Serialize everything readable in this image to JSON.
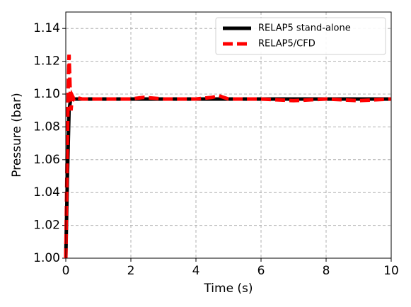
{
  "chart_data": {
    "type": "line",
    "xlabel": "Time (s)",
    "ylabel": "Pressure (bar)",
    "xlim": [
      0,
      10
    ],
    "xticks": [
      0,
      2,
      4,
      6,
      8,
      10
    ],
    "ylim": [
      1.0,
      1.15
    ],
    "yticks": [
      {
        "value": 1.0,
        "label": "1.00"
      },
      1.02,
      1.04,
      1.06,
      1.08,
      {
        "value": 1.1,
        "label": "1.10"
      },
      1.12,
      1.14
    ],
    "grid": true,
    "legend": "upper right",
    "series": [
      {
        "name": "RELAP5 stand-alone",
        "color": "#000000",
        "style": "solid",
        "x": [
          0,
          0.05,
          0.1,
          0.15,
          0.2,
          10
        ],
        "values": [
          1.0,
          1.05,
          1.09,
          1.097,
          1.097,
          1.097
        ]
      },
      {
        "name": "RELAP5/CFD",
        "color": "#ff0000",
        "style": "dashed",
        "x": [
          0,
          0.04,
          0.08,
          0.1,
          0.13,
          0.16,
          0.2,
          0.25,
          0.3,
          0.5,
          1,
          2,
          2.4,
          3,
          4,
          4.5,
          4.7,
          5,
          6,
          7,
          8,
          9,
          10
        ],
        "values": [
          1.0,
          1.06,
          1.11,
          1.124,
          1.105,
          1.09,
          1.099,
          1.097,
          1.098,
          1.097,
          1.097,
          1.097,
          1.098,
          1.097,
          1.097,
          1.098,
          1.099,
          1.097,
          1.097,
          1.096,
          1.097,
          1.096,
          1.097
        ]
      }
    ]
  }
}
